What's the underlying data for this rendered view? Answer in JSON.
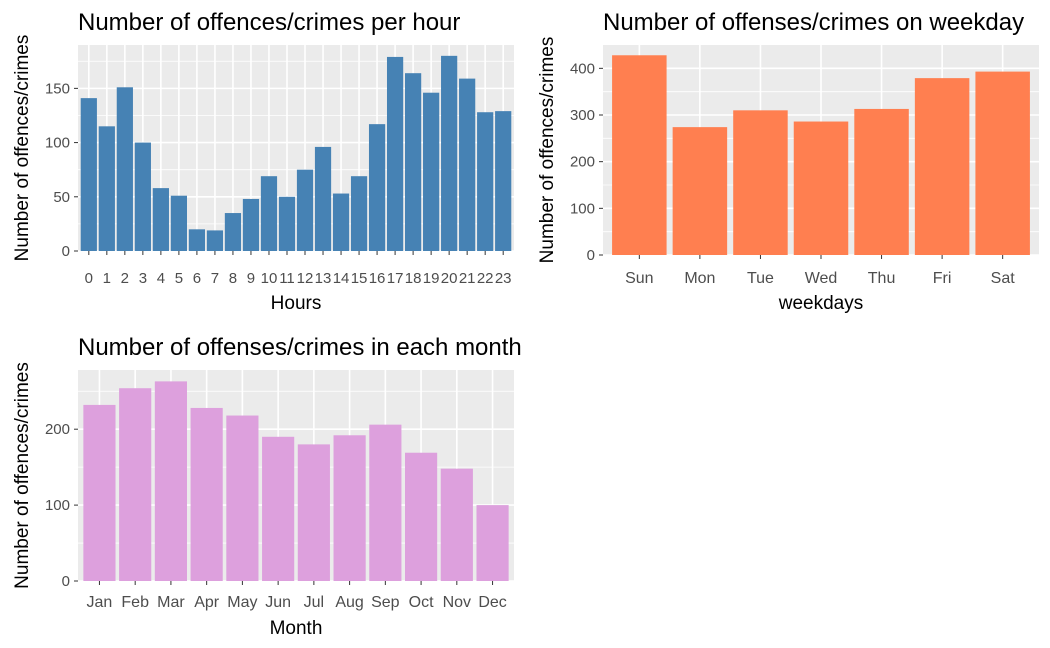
{
  "chart_data": [
    {
      "type": "bar",
      "title": "Number of offences/crimes per hour",
      "xlabel": "Hours",
      "ylabel": "Number of offences/crimes",
      "categories": [
        "0",
        "1",
        "2",
        "3",
        "4",
        "5",
        "6",
        "7",
        "8",
        "9",
        "10",
        "11",
        "12",
        "13",
        "14",
        "15",
        "16",
        "17",
        "18",
        "19",
        "20",
        "21",
        "22",
        "23"
      ],
      "values": [
        141,
        115,
        151,
        100,
        58,
        51,
        20,
        19,
        35,
        48,
        69,
        50,
        75,
        96,
        53,
        69,
        117,
        179,
        164,
        146,
        180,
        159,
        128,
        129
      ],
      "ylim": [
        0,
        190
      ],
      "yticks": [
        0,
        50,
        100,
        150
      ],
      "bar_color": "#4682B4",
      "grid": true
    },
    {
      "type": "bar",
      "title": "Number of offenses/crimes on weekday",
      "xlabel": "weekdays",
      "ylabel": "Number of offences/crimes",
      "categories": [
        "Sun",
        "Mon",
        "Tue",
        "Wed",
        "Thu",
        "Fri",
        "Sat"
      ],
      "values": [
        428,
        274,
        310,
        286,
        313,
        379,
        393
      ],
      "ylim": [
        0,
        450
      ],
      "yticks": [
        0,
        100,
        200,
        300,
        400
      ],
      "bar_color": "#FF7F50",
      "grid": true
    },
    {
      "type": "bar",
      "title": "Number of offenses/crimes in each month",
      "xlabel": "Month",
      "ylabel": "Number of offences/crimes",
      "categories": [
        "Jan",
        "Feb",
        "Mar",
        "Apr",
        "May",
        "Jun",
        "Jul",
        "Aug",
        "Sep",
        "Oct",
        "Nov",
        "Dec"
      ],
      "values": [
        232,
        254,
        263,
        228,
        218,
        190,
        180,
        192,
        206,
        169,
        148,
        100
      ],
      "ylim": [
        0,
        278
      ],
      "yticks": [
        0,
        100,
        200
      ],
      "bar_color": "#DDA0DD",
      "grid": true
    }
  ]
}
